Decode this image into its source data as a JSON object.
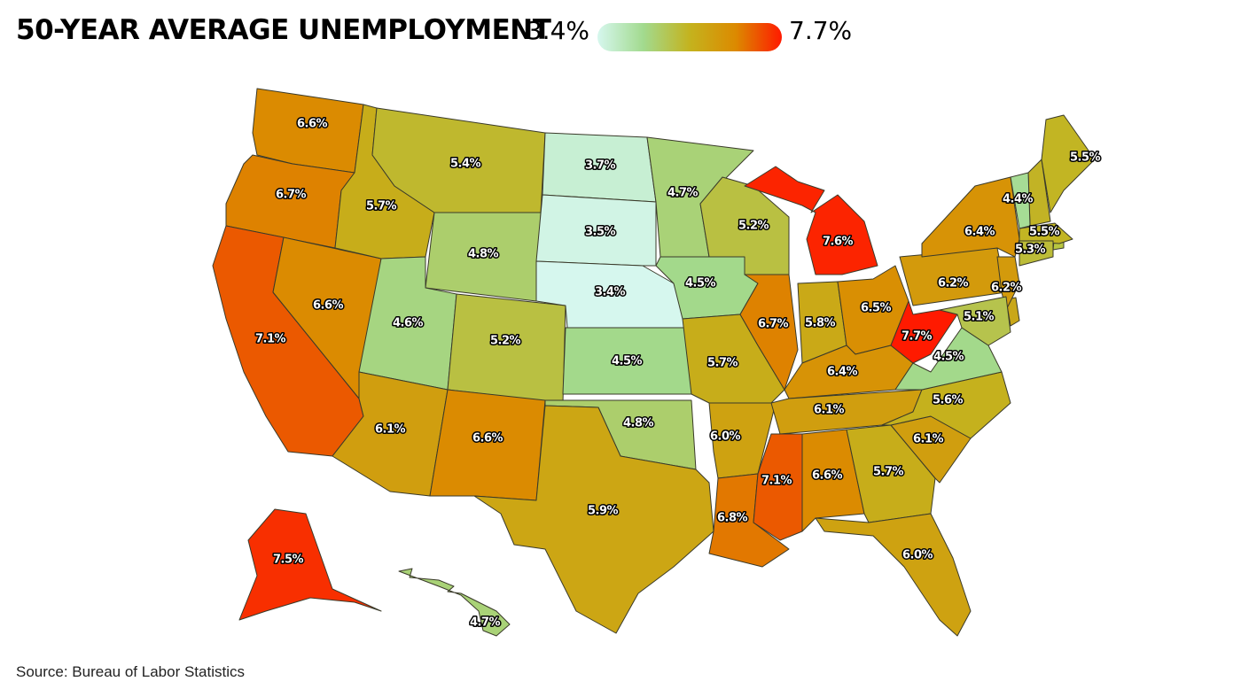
{
  "chart_data": {
    "type": "choropleth",
    "title": "50-YEAR AVERAGE UNEMPLOYMENT",
    "source": "Source: Bureau of Labor Statistics",
    "scale": {
      "min": {
        "value": 3.4,
        "label": "3.4%"
      },
      "max": {
        "value": 7.7,
        "label": "7.7%"
      },
      "colors": [
        "#d6f7ee",
        "#a2da8e",
        "#c4b31e",
        "#dc8a00",
        "#ff1a00"
      ]
    },
    "values": [
      6.6,
      6.7,
      7.1,
      6.6,
      5.7,
      5.4,
      4.8,
      4.6,
      6.1,
      5.2,
      6.6,
      3.7,
      3.5,
      3.4,
      4.5,
      4.8,
      5.9,
      4.7,
      4.5,
      5.7,
      6.0,
      6.8,
      5.2,
      6.7,
      7.6,
      5.8,
      6.5,
      6.4,
      6.1,
      7.1,
      6.6,
      5.7,
      6.0,
      6.1,
      5.6,
      4.5,
      7.7,
      6.2,
      6.4,
      6.2,
      5.1,
      4.4,
      5.5,
      5.5,
      5.3,
      7.5,
      4.7
    ],
    "value_labels": [
      "6.6%",
      "6.7%",
      "7.1%",
      "6.6%",
      "5.7%",
      "5.4%",
      "4.8%",
      "4.6%",
      "6.1%",
      "5.2%",
      "6.6%",
      "3.7%",
      "3.5%",
      "3.4%",
      "4.5%",
      "4.8%",
      "5.9%",
      "4.7%",
      "4.5%",
      "5.7%",
      "6.0%",
      "6.8%",
      "5.2%",
      "6.7%",
      "7.6%",
      "5.8%",
      "6.5%",
      "6.4%",
      "6.1%",
      "7.1%",
      "6.6%",
      "5.7%",
      "6.0%",
      "6.1%",
      "5.6%",
      "4.5%",
      "7.7%",
      "6.2%",
      "6.4%",
      "6.2%",
      "5.1%",
      "4.4%",
      "5.5%",
      "5.5%",
      "5.3%",
      "7.5%",
      "4.7%"
    ]
  }
}
